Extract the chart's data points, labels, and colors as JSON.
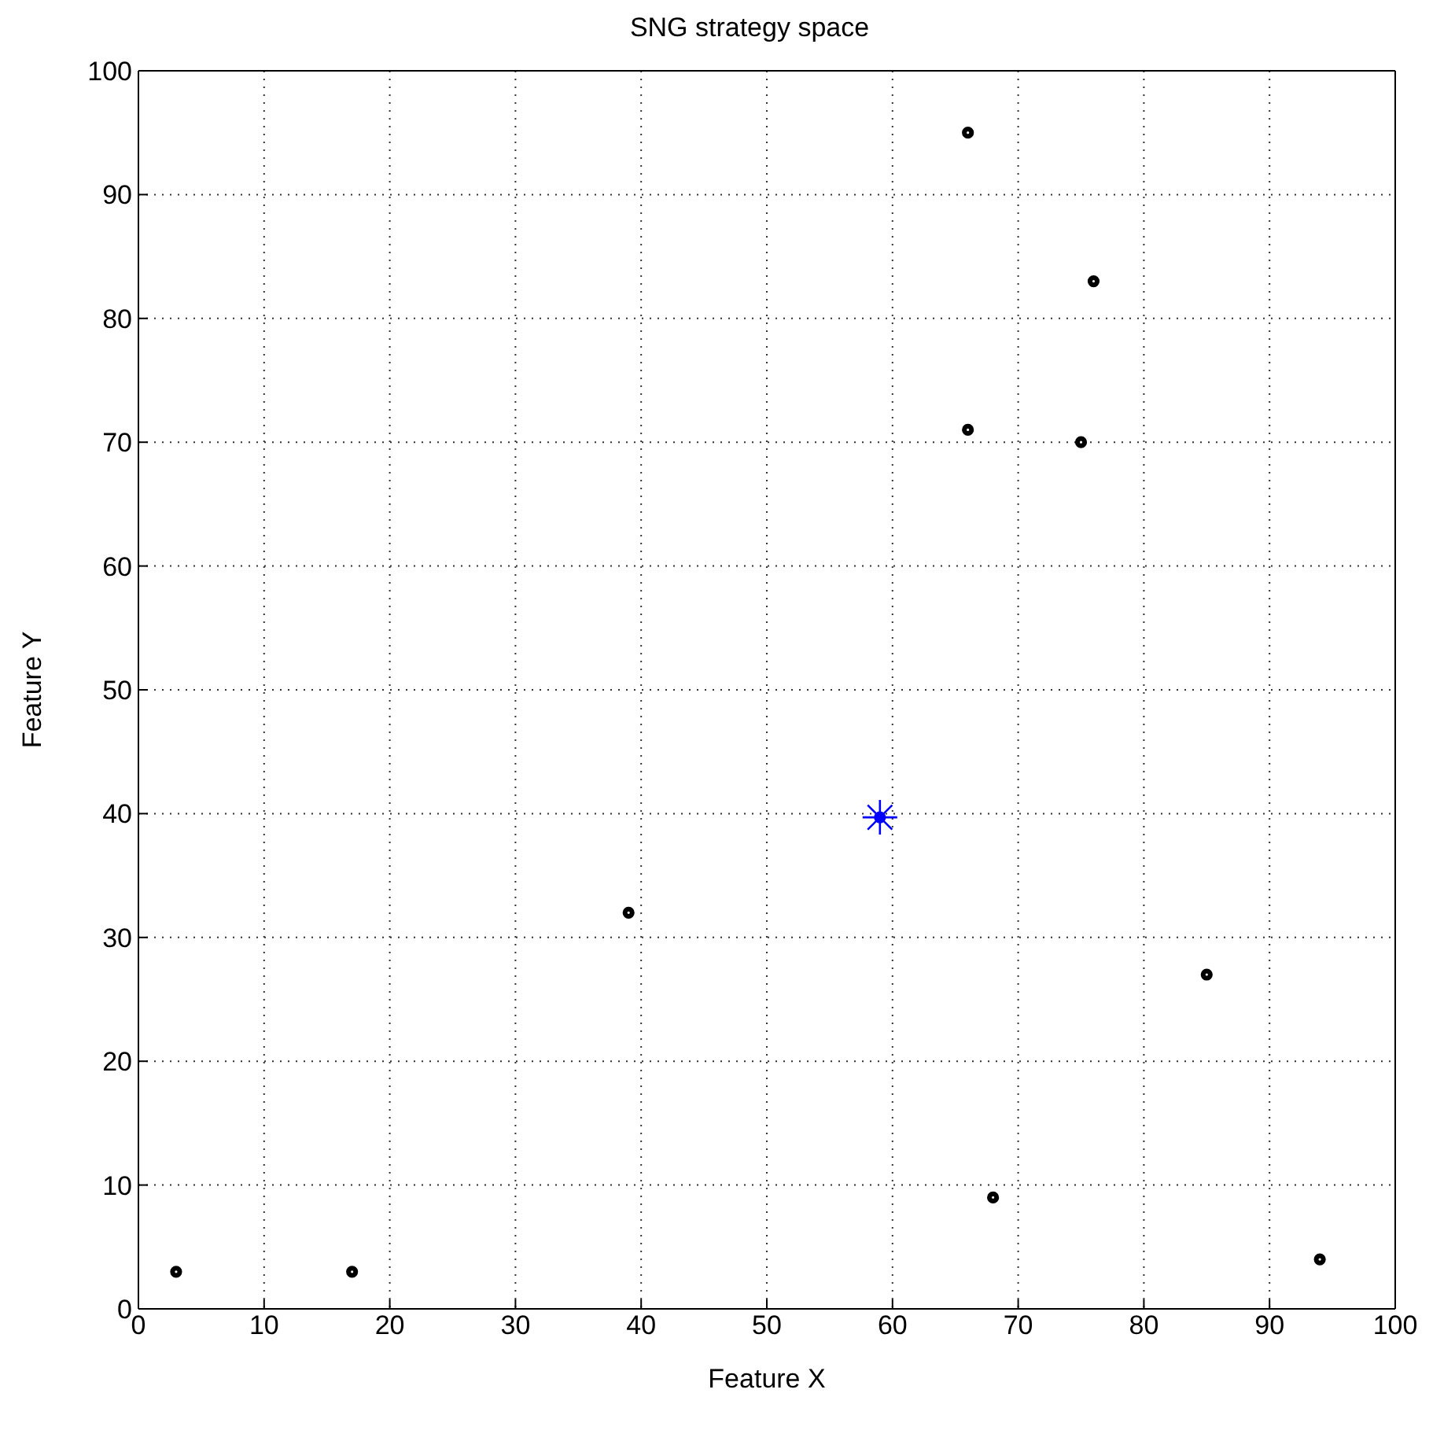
{
  "chart_data": {
    "type": "scatter",
    "title": "SNG strategy space",
    "xlabel": "Feature X",
    "ylabel": "Feature Y",
    "xlim": [
      0,
      100
    ],
    "ylim": [
      0,
      100
    ],
    "xticks": [
      0,
      10,
      20,
      30,
      40,
      50,
      60,
      70,
      80,
      90,
      100
    ],
    "yticks": [
      0,
      10,
      20,
      30,
      40,
      50,
      60,
      70,
      80,
      90,
      100
    ],
    "grid": true,
    "line_style": "dotted",
    "series": [
      {
        "color": "#000000",
        "marker": "circle",
        "x": [
          3,
          17,
          39,
          66,
          76,
          66,
          75,
          85,
          68,
          94
        ],
        "values": [
          3,
          3,
          32,
          95,
          83,
          71,
          70,
          27,
          9,
          4
        ]
      },
      {
        "color": "#0000ff",
        "marker": "circle",
        "x": [
          59
        ],
        "values": [
          39.7
        ]
      },
      {
        "color": "#0000ff",
        "marker": "cross",
        "x": [
          59
        ],
        "values": [
          39.7
        ]
      }
    ]
  }
}
